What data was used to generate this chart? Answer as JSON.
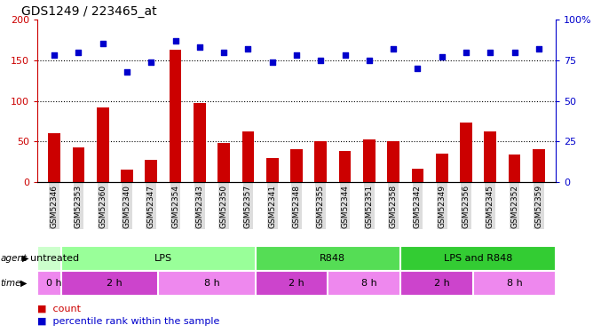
{
  "title": "GDS1249 / 223465_at",
  "samples": [
    "GSM52346",
    "GSM52353",
    "GSM52360",
    "GSM52340",
    "GSM52347",
    "GSM52354",
    "GSM52343",
    "GSM52350",
    "GSM52357",
    "GSM52341",
    "GSM52348",
    "GSM52355",
    "GSM52344",
    "GSM52351",
    "GSM52358",
    "GSM52342",
    "GSM52349",
    "GSM52356",
    "GSM52345",
    "GSM52352",
    "GSM52359"
  ],
  "counts": [
    60,
    43,
    92,
    15,
    27,
    163,
    97,
    48,
    62,
    30,
    40,
    50,
    38,
    53,
    50,
    16,
    35,
    73,
    62,
    34,
    40
  ],
  "percentiles": [
    78,
    80,
    85,
    68,
    74,
    87,
    83,
    80,
    82,
    74,
    78,
    75,
    78,
    75,
    82,
    70,
    77,
    80,
    80,
    80,
    82
  ],
  "count_ylim": [
    0,
    200
  ],
  "percentile_ylim": [
    0,
    100
  ],
  "count_yticks": [
    0,
    50,
    100,
    150,
    200
  ],
  "percentile_yticks": [
    0,
    25,
    50,
    75,
    100
  ],
  "count_color": "#cc0000",
  "percentile_color": "#0000cc",
  "agent_groups": [
    {
      "label": "untreated",
      "start": 0,
      "end": 1,
      "color": "#ccffcc"
    },
    {
      "label": "LPS",
      "start": 1,
      "end": 9,
      "color": "#99ff99"
    },
    {
      "label": "R848",
      "start": 9,
      "end": 15,
      "color": "#55dd55"
    },
    {
      "label": "LPS and R848",
      "start": 15,
      "end": 21,
      "color": "#33cc33"
    }
  ],
  "time_groups": [
    {
      "label": "0 h",
      "start": 0,
      "end": 1,
      "color": "#ee88ee"
    },
    {
      "label": "2 h",
      "start": 1,
      "end": 5,
      "color": "#cc44cc"
    },
    {
      "label": "8 h",
      "start": 5,
      "end": 9,
      "color": "#ee88ee"
    },
    {
      "label": "2 h",
      "start": 9,
      "end": 12,
      "color": "#cc44cc"
    },
    {
      "label": "8 h",
      "start": 12,
      "end": 15,
      "color": "#ee88ee"
    },
    {
      "label": "2 h",
      "start": 15,
      "end": 18,
      "color": "#cc44cc"
    },
    {
      "label": "8 h",
      "start": 18,
      "end": 21,
      "color": "#ee88ee"
    }
  ],
  "bar_width": 0.5,
  "background_color": "#ffffff",
  "legend_count_label": "count",
  "legend_pct_label": "percentile rank within the sample",
  "xtick_bg": "#dddddd"
}
